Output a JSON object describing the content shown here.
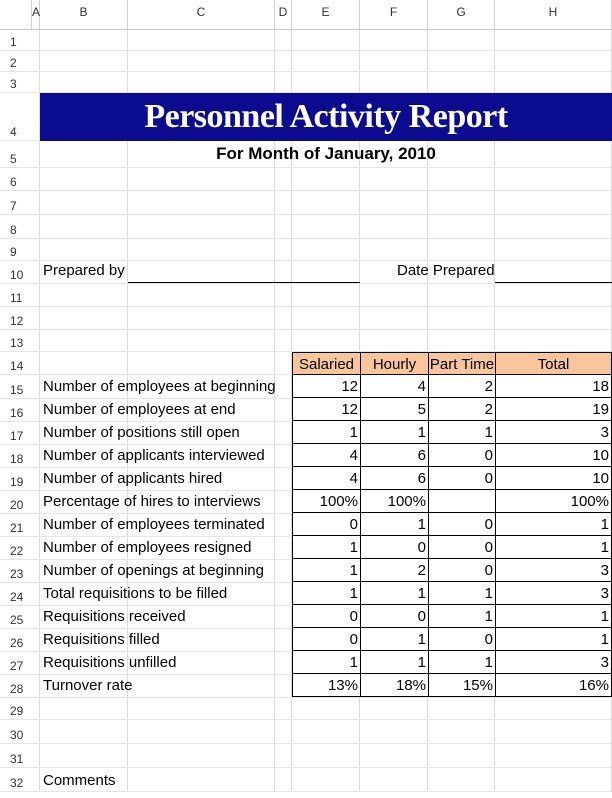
{
  "columns": [
    "A",
    "B",
    "C",
    "D",
    "E",
    "F",
    "G",
    "H"
  ],
  "rows": [
    "1",
    "2",
    "3",
    "4",
    "5",
    "6",
    "7",
    "8",
    "9",
    "10",
    "11",
    "12",
    "13",
    "14",
    "15",
    "16",
    "17",
    "18",
    "19",
    "20",
    "21",
    "22",
    "23",
    "24",
    "25",
    "26",
    "27",
    "28",
    "29",
    "30",
    "31",
    "32"
  ],
  "report": {
    "title": "Personnel Activity Report",
    "subtitle": "For Month of January, 2010",
    "prepared_by_label": "Prepared by",
    "date_prepared_label": "Date Prepared",
    "comments_label": "Comments",
    "title_band_color": "#0b0b8f",
    "header_fill_color": "#f9c59b"
  },
  "table": {
    "headers": [
      "Salaried",
      "Hourly",
      "Part Time",
      "Total"
    ],
    "rows": [
      {
        "label": "Number of employees at beginning",
        "values": [
          "12",
          "4",
          "2",
          "18"
        ]
      },
      {
        "label": "Number of employees at end",
        "values": [
          "12",
          "5",
          "2",
          "19"
        ]
      },
      {
        "label": "Number of positions still open",
        "values": [
          "1",
          "1",
          "1",
          "3"
        ]
      },
      {
        "label": "Number of applicants interviewed",
        "values": [
          "4",
          "6",
          "0",
          "10"
        ]
      },
      {
        "label": "Number of applicants hired",
        "values": [
          "4",
          "6",
          "0",
          "10"
        ]
      },
      {
        "label": "Percentage of hires to interviews",
        "values": [
          "100%",
          "100%",
          "",
          "100%"
        ]
      },
      {
        "label": "Number of employees terminated",
        "values": [
          "0",
          "1",
          "0",
          "1"
        ]
      },
      {
        "label": "Number of employees resigned",
        "values": [
          "1",
          "0",
          "0",
          "1"
        ]
      },
      {
        "label": "Number of openings at beginning",
        "values": [
          "1",
          "2",
          "0",
          "3"
        ]
      },
      {
        "label": "Total requisitions to be filled",
        "values": [
          "1",
          "1",
          "1",
          "3"
        ]
      },
      {
        "label": "Requisitions received",
        "values": [
          "0",
          "0",
          "1",
          "1"
        ]
      },
      {
        "label": "Requisitions filled",
        "values": [
          "0",
          "1",
          "0",
          "1"
        ]
      },
      {
        "label": "Requisitions unfilled",
        "values": [
          "1",
          "1",
          "1",
          "3"
        ]
      },
      {
        "label": "Turnover rate",
        "values": [
          "13%",
          "18%",
          "15%",
          "16%"
        ]
      }
    ]
  }
}
